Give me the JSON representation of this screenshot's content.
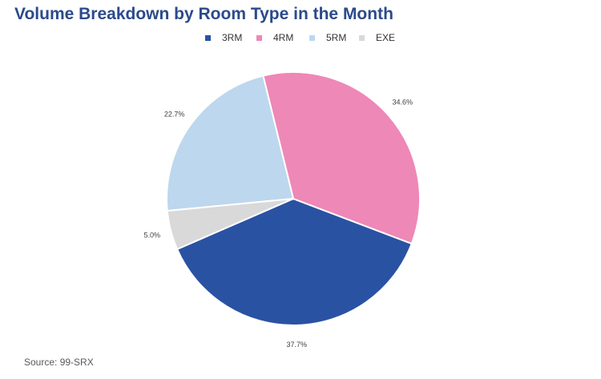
{
  "chart_data": {
    "type": "pie",
    "title": "Volume Breakdown by Room Type in the Month",
    "categories": [
      "3RM",
      "4RM",
      "5RM",
      "EXE"
    ],
    "values": [
      37.7,
      34.6,
      22.7,
      5.0
    ],
    "labels": [
      "37.7%",
      "34.6%",
      "22.7%",
      "5.0%"
    ],
    "colors": [
      "#2a52a3",
      "#ee88b6",
      "#bdd7ee",
      "#d9d9d9"
    ],
    "legend_position": "top"
  },
  "source": "Source: 99-SRX"
}
